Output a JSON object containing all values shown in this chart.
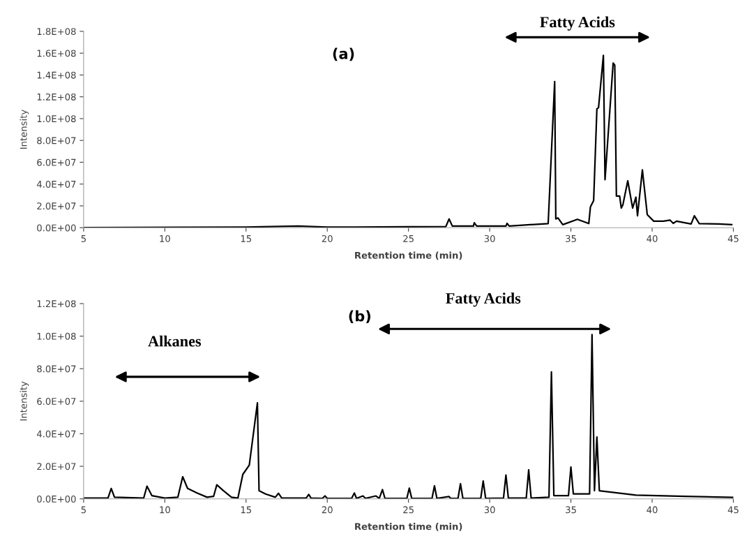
{
  "chart_data": [
    {
      "type": "line",
      "title": "(a)",
      "xlabel": "Retention time (min)",
      "ylabel": "Intensity",
      "annotations": [
        "Fatty Acids"
      ],
      "xlim": [
        5,
        45
      ],
      "ylim": [
        0,
        180000000
      ],
      "xticks": [
        5,
        10,
        15,
        20,
        25,
        30,
        35,
        40,
        45
      ],
      "yticks": [
        {
          "value": 0,
          "label": "0.0E+00"
        },
        {
          "value": 20000000,
          "label": "2.0E+07"
        },
        {
          "value": 40000000,
          "label": "4.0E+07"
        },
        {
          "value": 60000000,
          "label": "6.0E+07"
        },
        {
          "value": 80000000,
          "label": "8.0E+07"
        },
        {
          "value": 100000000,
          "label": "1.0E+08"
        },
        {
          "value": 120000000,
          "label": "1.2E+08"
        },
        {
          "value": 140000000,
          "label": "1.4E+08"
        },
        {
          "value": 160000000,
          "label": "1.6E+08"
        },
        {
          "value": 180000000,
          "label": "1.8E+08"
        }
      ],
      "grid": false,
      "legend": false,
      "marker": "none",
      "line_style": "solid",
      "series": [
        {
          "color": "#000000",
          "x": [
            5,
            15,
            16,
            18.2,
            20,
            25,
            27.3,
            27.5,
            27.7,
            29,
            29.05,
            29.2,
            31,
            31.07,
            31.2,
            33.6,
            34.0,
            34.07,
            34.2,
            34.5,
            35.4,
            36.1,
            36.2,
            36.4,
            36.6,
            36.7,
            37.0,
            37.1,
            37.6,
            37.7,
            37.8,
            38.0,
            38.1,
            38.2,
            38.5,
            38.8,
            39.0,
            39.1,
            39.4,
            39.7,
            40.1,
            40.7,
            41.1,
            41.3,
            41.5,
            42.4,
            42.6,
            42.9,
            44.1,
            44.9
          ],
          "values": [
            100000,
            500000,
            800000,
            1500000,
            500000,
            800000,
            1000000,
            8000000,
            1500000,
            1500000,
            4500000,
            1500000,
            1500000,
            4000000,
            1500000,
            3800000,
            134000000,
            8000000,
            9000000,
            2800000,
            7700000,
            3800000,
            19000000,
            25000000,
            109000000,
            110000000,
            158000000,
            44000000,
            151000000,
            149000000,
            29000000,
            29000000,
            18000000,
            21000000,
            43000000,
            18000000,
            28000000,
            11000000,
            53000000,
            12000000,
            6000000,
            6000000,
            7000000,
            4000000,
            6000000,
            3400000,
            11000000,
            3800000,
            3400000,
            2800000
          ]
        }
      ]
    },
    {
      "type": "line",
      "title": "(b)",
      "xlabel": "Retention time (min)",
      "ylabel": "Intensity",
      "annotations": [
        "Alkanes",
        "Fatty Acids"
      ],
      "xlim": [
        5,
        45
      ],
      "ylim": [
        0,
        120000000
      ],
      "xticks": [
        5,
        10,
        15,
        20,
        25,
        30,
        35,
        40,
        45
      ],
      "yticks": [
        {
          "value": 0,
          "label": "0.0E+00"
        },
        {
          "value": 20000000,
          "label": "2.0E+07"
        },
        {
          "value": 40000000,
          "label": "4.0E+07"
        },
        {
          "value": 60000000,
          "label": "6.0E+07"
        },
        {
          "value": 80000000,
          "label": "8.0E+07"
        },
        {
          "value": 100000000,
          "label": "1.0E+08"
        },
        {
          "value": 120000000,
          "label": "1.2E+08"
        }
      ],
      "grid": false,
      "legend": false,
      "marker": "none",
      "line_style": "solid",
      "series": [
        {
          "color": "#000000",
          "x": [
            5,
            6.5,
            6.7,
            6.9,
            8.7,
            8.9,
            9.2,
            10,
            10.8,
            11.1,
            11.4,
            12.0,
            12.6,
            13.0,
            13.2,
            13.6,
            14.1,
            14.5,
            14.8,
            15.2,
            15.7,
            15.8,
            16.2,
            16.8,
            17.0,
            17.2,
            18.7,
            18.86,
            19.0,
            19.7,
            19.86,
            20.0,
            21.5,
            21.67,
            21.8,
            22.2,
            22.35,
            23.0,
            23.2,
            23.4,
            23.55,
            24.9,
            25.05,
            25.2,
            26.45,
            26.6,
            26.75,
            27.5,
            27.6,
            28.05,
            28.2,
            28.35,
            29.45,
            29.6,
            29.75,
            30.85,
            31.0,
            31.15,
            32.25,
            32.4,
            32.55,
            33.65,
            33.8,
            33.95,
            34.85,
            35.0,
            35.15,
            36.15,
            36.3,
            36.45,
            36.6,
            36.75,
            37.2,
            39.0,
            42,
            45
          ],
          "values": [
            500000,
            500000,
            6400000,
            1000000,
            500000,
            7800000,
            2000000,
            500000,
            1000000,
            13600000,
            6400000,
            3500000,
            1000000,
            1500000,
            8600000,
            5100000,
            1000000,
            500000,
            15000000,
            20700000,
            59000000,
            5000000,
            3000000,
            1000000,
            3400000,
            500000,
            500000,
            2700000,
            500000,
            300000,
            1800000,
            300000,
            300000,
            3600000,
            300000,
            1800000,
            300000,
            1800000,
            300000,
            5700000,
            300000,
            300000,
            6600000,
            300000,
            300000,
            8000000,
            300000,
            1400000,
            300000,
            300000,
            9300000,
            300000,
            300000,
            11000000,
            300000,
            500000,
            14600000,
            500000,
            500000,
            17800000,
            500000,
            1000000,
            78000000,
            2000000,
            2000000,
            19600000,
            3000000,
            3000000,
            101000000,
            5000000,
            38000000,
            5000000,
            4400000,
            2300000,
            1500000,
            900000
          ]
        }
      ]
    }
  ]
}
